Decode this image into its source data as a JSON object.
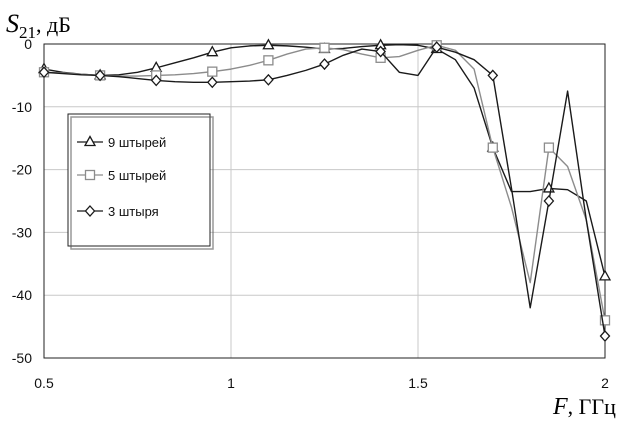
{
  "chart_data": {
    "type": "line",
    "ylabel_symbol": "S",
    "ylabel_subscript": "21",
    "ylabel_unit": ", дБ",
    "xlabel_symbol": "F",
    "xlabel_unit": ", ГГц",
    "xlim": [
      0.5,
      2
    ],
    "ylim": [
      -50,
      0
    ],
    "xticks": [
      "0.5",
      "1",
      "1.5",
      "2"
    ],
    "xtick_values": [
      0.5,
      1,
      1.5,
      2
    ],
    "yticks": [
      "0",
      "-10",
      "-20",
      "-30",
      "-40",
      "-50"
    ],
    "ytick_values": [
      0,
      -10,
      -20,
      -30,
      -40,
      -50
    ],
    "grid": true,
    "legend_position": "left-middle",
    "series": [
      {
        "name": "9 штырей",
        "marker": "triangle",
        "color": "#1a1a1a",
        "x": [
          0.5,
          0.55,
          0.6,
          0.65,
          0.7,
          0.75,
          0.8,
          0.85,
          0.9,
          0.95,
          1.0,
          1.05,
          1.1,
          1.15,
          1.2,
          1.25,
          1.3,
          1.35,
          1.4,
          1.45,
          1.5,
          1.55,
          1.6,
          1.65,
          1.7,
          1.75,
          1.8,
          1.85,
          1.9,
          1.95,
          2.0
        ],
        "y": [
          -4.0,
          -4.5,
          -4.8,
          -5.0,
          -4.9,
          -4.5,
          -3.8,
          -3.0,
          -2.2,
          -1.3,
          -0.6,
          -0.3,
          -0.2,
          -0.3,
          -0.5,
          -0.8,
          -0.7,
          -0.4,
          -0.2,
          -0.1,
          -0.2,
          -0.8,
          -2.5,
          -7.0,
          -16.5,
          -23.5,
          -23.5,
          -23.0,
          -23.2,
          -25.0,
          -37.0
        ],
        "marker_x": [
          0.5,
          0.65,
          0.8,
          0.95,
          1.1,
          1.25,
          1.4,
          1.55,
          1.7,
          1.85,
          2.0
        ],
        "marker_y": [
          -4.0,
          -5.0,
          -3.8,
          -1.3,
          -0.2,
          -0.8,
          -0.2,
          -0.8,
          -16.5,
          -23.0,
          -37.0
        ]
      },
      {
        "name": "5 штырей",
        "marker": "square",
        "color": "#8c8c8c",
        "x": [
          0.5,
          0.55,
          0.6,
          0.65,
          0.7,
          0.75,
          0.8,
          0.85,
          0.9,
          0.95,
          1.0,
          1.05,
          1.1,
          1.15,
          1.2,
          1.25,
          1.3,
          1.35,
          1.4,
          1.45,
          1.5,
          1.55,
          1.6,
          1.65,
          1.7,
          1.75,
          1.8,
          1.85,
          1.9,
          1.95,
          2.0
        ],
        "y": [
          -4.5,
          -4.6,
          -4.8,
          -5.0,
          -5.1,
          -5.1,
          -5.0,
          -4.9,
          -4.7,
          -4.4,
          -4.0,
          -3.4,
          -2.6,
          -1.6,
          -0.8,
          -0.6,
          -0.9,
          -1.6,
          -2.2,
          -2.0,
          -1.0,
          -0.2,
          -1.0,
          -4.0,
          -16.5,
          -26.0,
          -38.0,
          -16.5,
          -19.5,
          -28.0,
          -44.0
        ],
        "marker_x": [
          0.5,
          0.65,
          0.8,
          0.95,
          1.1,
          1.25,
          1.4,
          1.55,
          1.7,
          1.85,
          2.0
        ],
        "marker_y": [
          -4.5,
          -5.0,
          -5.0,
          -4.4,
          -2.6,
          -0.6,
          -2.2,
          -0.2,
          -16.5,
          -16.5,
          -44.0
        ]
      },
      {
        "name": "3 штыря",
        "marker": "diamond",
        "color": "#1a1a1a",
        "x": [
          0.5,
          0.55,
          0.6,
          0.65,
          0.7,
          0.75,
          0.8,
          0.85,
          0.9,
          0.95,
          1.0,
          1.05,
          1.1,
          1.15,
          1.2,
          1.25,
          1.3,
          1.35,
          1.4,
          1.45,
          1.5,
          1.55,
          1.6,
          1.65,
          1.7,
          1.75,
          1.8,
          1.85,
          1.9,
          1.95,
          2.0
        ],
        "y": [
          -4.5,
          -4.7,
          -4.9,
          -5.0,
          -5.2,
          -5.5,
          -5.8,
          -6.0,
          -6.1,
          -6.1,
          -6.0,
          -5.9,
          -5.7,
          -5.0,
          -4.2,
          -3.2,
          -1.8,
          -0.8,
          -1.2,
          -4.5,
          -5.0,
          -0.5,
          -1.3,
          -2.5,
          -5.0,
          -23.0,
          -42.0,
          -25.0,
          -7.5,
          -28.0,
          -46.5
        ],
        "marker_x": [
          0.5,
          0.65,
          0.8,
          0.95,
          1.1,
          1.25,
          1.4,
          1.55,
          1.7,
          1.85,
          2.0
        ],
        "marker_y": [
          -4.5,
          -5.0,
          -5.8,
          -6.1,
          -5.7,
          -3.2,
          -1.2,
          -0.5,
          -5.0,
          -25.0,
          -46.5
        ]
      }
    ]
  }
}
